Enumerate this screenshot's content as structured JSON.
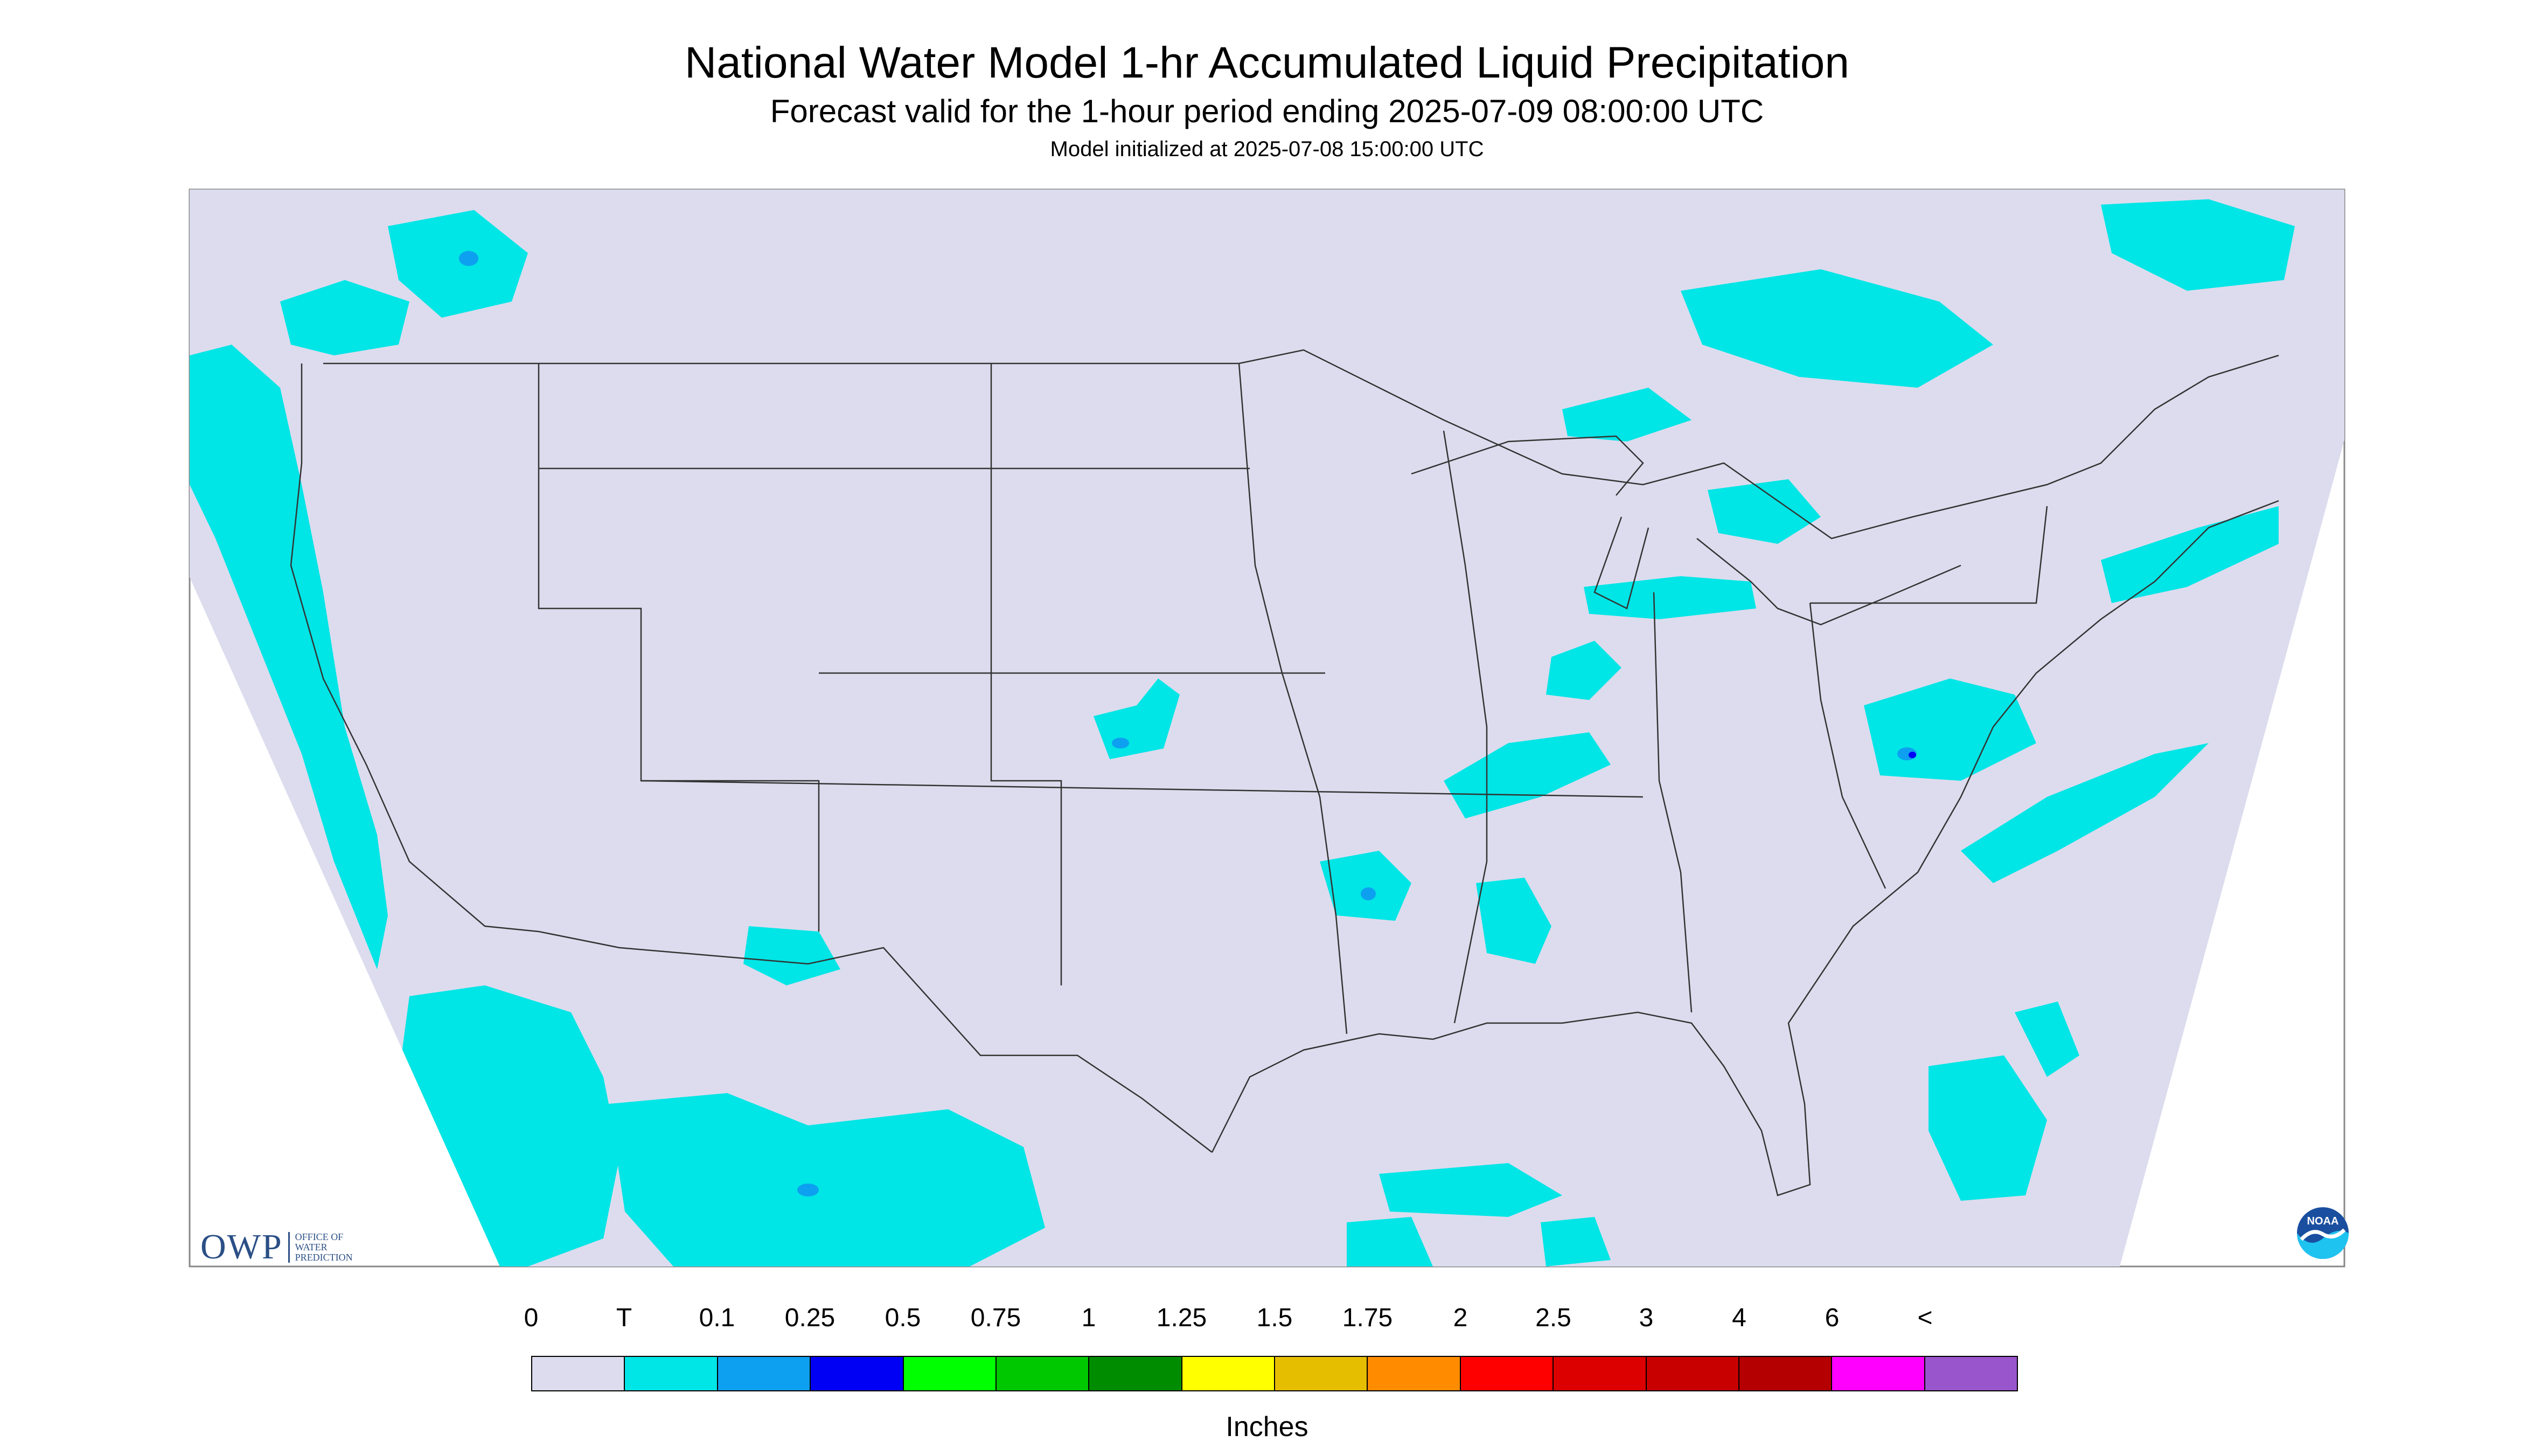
{
  "header": {
    "title": "National Water Model 1-hr Accumulated Liquid Precipitation",
    "subtitle": "Forecast valid for the 1-hour period ending 2025-07-09 08:00:00 UTC",
    "init": "Model initialized at 2025-07-08 15:00:00 UTC"
  },
  "legend": {
    "ticks": [
      "0",
      "T",
      "0.1",
      "0.25",
      "0.5",
      "0.75",
      "1",
      "1.25",
      "1.5",
      "1.75",
      "2",
      "2.5",
      "3",
      "4",
      "6",
      "<"
    ],
    "colors": [
      "#dcdcee",
      "#00e5e5",
      "#0ea0f0",
      "#0000f5",
      "#00ff00",
      "#00c800",
      "#008c00",
      "#ffff00",
      "#e6be00",
      "#ff8c00",
      "#ff0000",
      "#dc0000",
      "#c80000",
      "#b40000",
      "#ff00ff",
      "#9955cc"
    ],
    "units": "Inches"
  },
  "map": {
    "background_color": "#dcdcee",
    "precip_trace_color": "#00e5e5",
    "precip_light_color": "#0ea0f0",
    "precip_moderate_color": "#0000f5",
    "boundary_color": "#333333"
  },
  "logos": {
    "owp_mark": "OWP",
    "owp_line1": "OFFICE OF",
    "owp_line2": "WATER",
    "owp_line3": "PREDICTION",
    "noaa_text": "NOAA",
    "noaa_icon": "noaa-logo-icon"
  }
}
